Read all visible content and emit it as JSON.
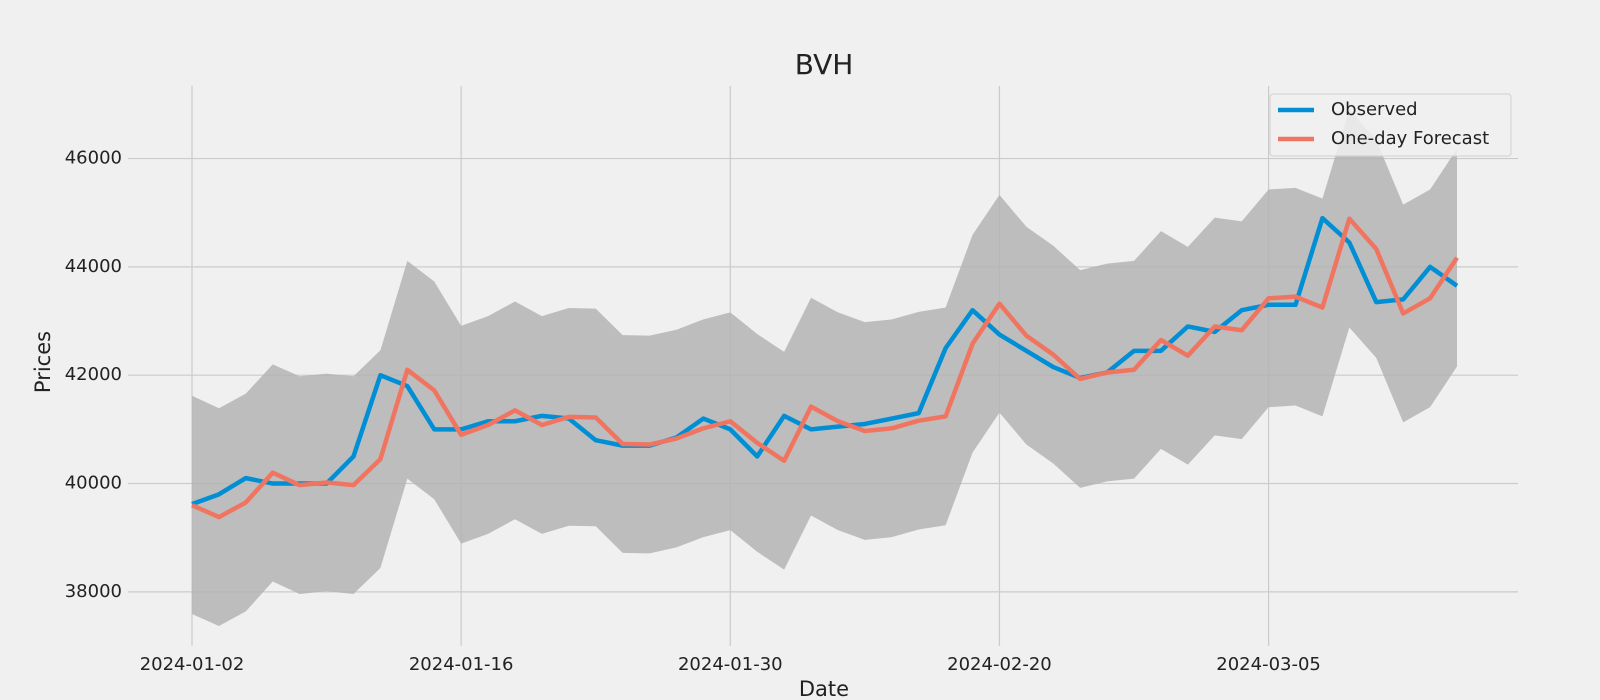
{
  "chart_data": {
    "type": "line",
    "title": "BVH",
    "x_label": "Date",
    "y_label": "Prices",
    "categories": [
      "2024-01-02",
      null,
      null,
      null,
      null,
      null,
      null,
      null,
      null,
      null,
      "2024-01-16",
      null,
      null,
      null,
      null,
      null,
      null,
      null,
      null,
      null,
      "2024-01-30",
      null,
      null,
      null,
      null,
      null,
      null,
      null,
      null,
      null,
      "2024-02-20",
      null,
      null,
      null,
      null,
      null,
      null,
      null,
      null,
      null,
      "2024-03-05",
      null,
      null,
      null,
      null,
      null,
      null,
      null
    ],
    "series": [
      {
        "name": "Observed",
        "color": "#008fd5",
        "values": [
          39620,
          39800,
          40100,
          40000,
          40000,
          40000,
          40500,
          42000,
          41800,
          41000,
          41000,
          41150,
          41150,
          41250,
          41200,
          40800,
          40700,
          40700,
          40850,
          41200,
          41000,
          40500,
          41250,
          41000,
          41050,
          41100,
          41200,
          41300,
          42500,
          43200,
          42750,
          42450,
          42150,
          41950,
          42050,
          42450,
          42450,
          42900,
          42800,
          43200,
          43300,
          43300,
          44900,
          44450,
          43350,
          43400,
          44000,
          43650
        ]
      },
      {
        "name": "One-day Forecast",
        "color": "#f07560",
        "values": [
          39600,
          39380,
          39650,
          40200,
          39970,
          40020,
          39970,
          40450,
          42100,
          41720,
          40900,
          41080,
          41350,
          41080,
          41230,
          41220,
          40730,
          40720,
          40830,
          41020,
          41150,
          40750,
          40420,
          41420,
          41150,
          40970,
          41020,
          41160,
          41240,
          42580,
          43320,
          42730,
          42380,
          41930,
          42050,
          42100,
          42650,
          42360,
          42900,
          42830,
          43420,
          43450,
          43250,
          44890,
          44330,
          43140,
          43420,
          44170
        ]
      }
    ],
    "band": {
      "color": "#b4b4b4",
      "upper": [
        41620,
        41390,
        41660,
        42200,
        41980,
        42030,
        41980,
        42460,
        44110,
        43730,
        42910,
        43090,
        43360,
        43090,
        43240,
        43230,
        42740,
        42730,
        42840,
        43030,
        43160,
        42760,
        42430,
        43430,
        43160,
        42980,
        43030,
        43170,
        43250,
        44590,
        45330,
        44740,
        44390,
        43940,
        44060,
        44110,
        44660,
        44370,
        44910,
        44840,
        45430,
        45460,
        45260,
        46900,
        46340,
        45150,
        45430,
        46180
      ],
      "lower": [
        37590,
        37370,
        37640,
        38190,
        37960,
        38010,
        37960,
        38440,
        40090,
        39710,
        38890,
        39070,
        39340,
        39070,
        39220,
        39210,
        38720,
        38710,
        38820,
        39010,
        39140,
        38740,
        38410,
        39410,
        39140,
        38960,
        39010,
        39150,
        39230,
        40570,
        41310,
        40720,
        40370,
        39920,
        40040,
        40090,
        40640,
        40350,
        40890,
        40820,
        41410,
        41440,
        41240,
        42880,
        42320,
        41130,
        41410,
        42160
      ]
    },
    "ylim": [
      37000,
      47340
    ],
    "yticks": [
      38000,
      40000,
      42000,
      44000,
      46000
    ],
    "grid": true,
    "legend": "upper right"
  }
}
